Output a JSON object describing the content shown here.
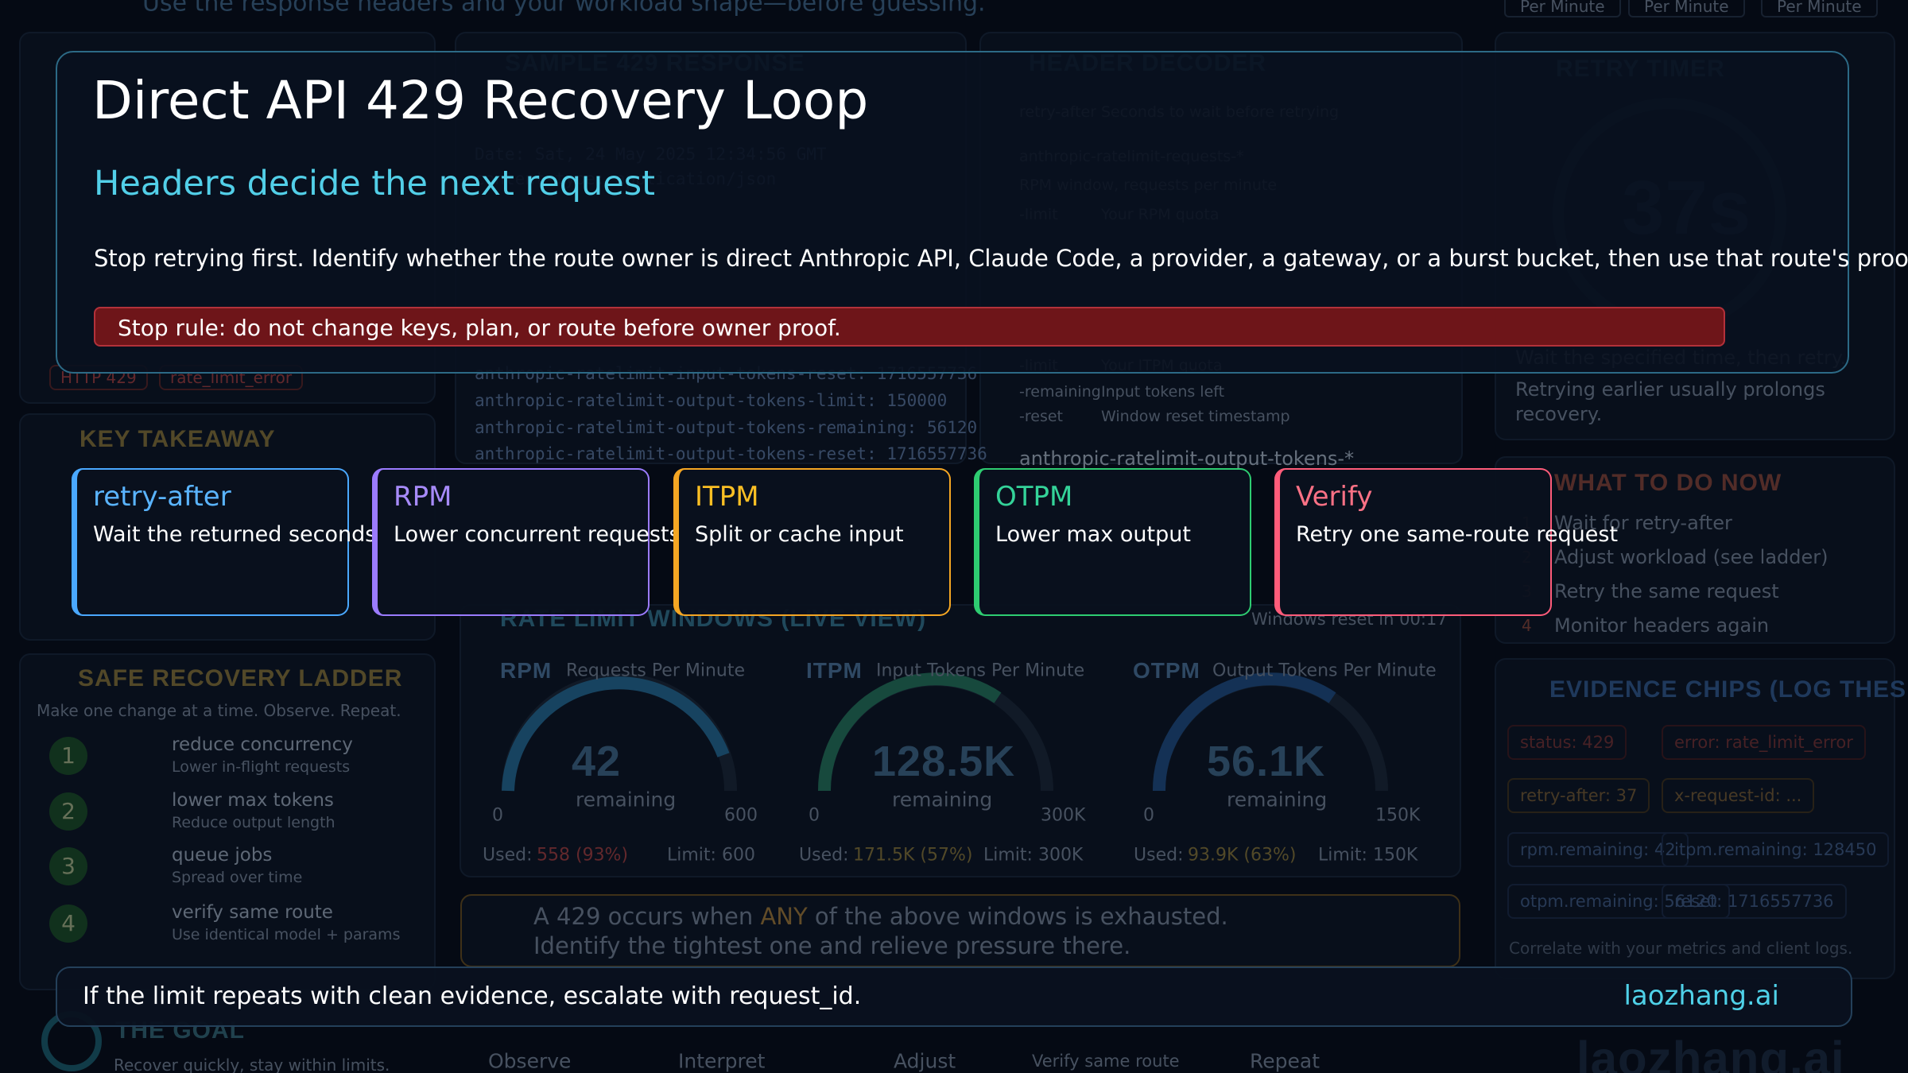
{
  "background": {
    "top_line": "Use the response headers and your workload shape—before guessing.",
    "tabs": [
      "Per Minute",
      "Per Minute",
      "Per Minute"
    ],
    "left_chips": [
      "HTTP 429",
      "rate_limit_error"
    ],
    "sample_title": "SAMPLE 429 RESPONSE",
    "code_lines": [
      "Date: Sat, 24 May 2025 12:34:56 GMT",
      "content-type: application/json",
      "anthropic-ratelimit-input-tokens-reset: 1716557736",
      "anthropic-ratelimit-output-tokens-limit: 150000",
      "anthropic-ratelimit-output-tokens-remaining: 56120",
      "anthropic-ratelimit-output-tokens-reset: 1716557736"
    ],
    "decoder_title": "HEADER DECODER",
    "decoder_rows": [
      [
        "retry-after",
        "Seconds to wait before retrying"
      ],
      [
        "anthropic-ratelimit-requests-*",
        ""
      ],
      [
        "",
        "RPM window, requests per minute"
      ],
      [
        "-limit",
        "Your RPM quota"
      ],
      [
        "-limit",
        "Your ITPM quota"
      ],
      [
        "-remaining",
        "Input tokens left"
      ],
      [
        "-reset",
        "Window reset timestamp"
      ],
      [
        "anthropic-ratelimit-output-tokens-*",
        ""
      ]
    ],
    "timer_title": "RETRY TIMER",
    "timer_value": "37s",
    "timer_lines": [
      "Wait the specified time, then retry.",
      "Retrying earlier usually prolongs",
      "recovery."
    ],
    "takeaway_title": "KEY TAKEAWAY",
    "ladder_title": "SAFE RECOVERY LADDER",
    "ladder_sub": "Make one change at a time. Observe. Repeat.",
    "ladder": [
      [
        "1",
        "reduce concurrency",
        "Lower in-flight requests"
      ],
      [
        "2",
        "lower max tokens",
        "Reduce output length"
      ],
      [
        "3",
        "queue jobs",
        "Spread over time"
      ],
      [
        "4",
        "verify same route",
        "Use identical model + params"
      ]
    ],
    "windows_title": "RATE LIMIT WINDOWS (LIVE VIEW)",
    "windows_reset": "Windows reset in 00:17",
    "gauges": [
      {
        "name": "RPM",
        "desc": "Requests Per Minute",
        "value": "42",
        "unit": "remaining",
        "min": "0",
        "max": "600",
        "used": "Used:",
        "used_value": "558 (93%)",
        "limit": "Limit: 600"
      },
      {
        "name": "ITPM",
        "desc": "Input Tokens Per Minute",
        "value": "128.5K",
        "unit": "remaining",
        "min": "0",
        "max": "300K",
        "used": "Used:",
        "used_value": "171.5K (57%)",
        "limit": "Limit: 300K"
      },
      {
        "name": "OTPM",
        "desc": "Output Tokens Per Minute",
        "value": "56.1K",
        "unit": "remaining",
        "min": "0",
        "max": "150K",
        "used": "Used:",
        "used_value": "93.9K (63%)",
        "limit": "Limit: 150K"
      }
    ],
    "info": [
      "A 429 occurs when ",
      "ANY",
      " of the above windows is exhausted.",
      "Identify the tightest one and relieve pressure there."
    ],
    "todo_title": "WHAT TO DO NOW",
    "todo": [
      [
        "1",
        "Wait for retry-after"
      ],
      [
        "2",
        "Adjust workload (see ladder)"
      ],
      [
        "3",
        "Retry the same request"
      ],
      [
        "4",
        "Monitor headers again"
      ]
    ],
    "evidence_title": "EVIDENCE CHIPS (LOG THESE)",
    "evidence": [
      "status: 429",
      "error: rate_limit_error",
      "retry-after: 37",
      "x-request-id: ...",
      "rpm.remaining: 42",
      "itpm.remaining: 128450",
      "otpm.remaining: 56120",
      "reset: 1716557736"
    ],
    "evidence_note": "Correlate with your metrics and client logs.",
    "goal_title": "THE GOAL",
    "goal_sub": "Recover quickly, stay within limits.",
    "flow": [
      "Observe",
      "Interpret",
      "Adjust",
      "Verify same route",
      "Repeat"
    ],
    "brand": "laozhang.ai"
  },
  "card": {
    "title": "Direct API 429 Recovery Loop",
    "subtitle": "Headers decide the next request",
    "body": "Stop retrying first. Identify whether the route owner is direct Anthropic API, Claude Code, a provider, a gateway, or a burst bucket, then use that route's proof s",
    "stop_rule": "Stop rule: do not change keys, plan, or route before owner proof."
  },
  "steps": [
    {
      "title": "retry-after",
      "text": "Wait the returned seconds"
    },
    {
      "title": "RPM",
      "text": "Lower concurrent requests"
    },
    {
      "title": "ITPM",
      "text": "Split or cache input"
    },
    {
      "title": "OTPM",
      "text": "Lower max output"
    },
    {
      "title": "Verify",
      "text": "Retry one same-route request"
    }
  ],
  "footer": {
    "text": "If the limit repeats with clean evidence, escalate with request_id.",
    "brand": "laozhang.ai"
  }
}
